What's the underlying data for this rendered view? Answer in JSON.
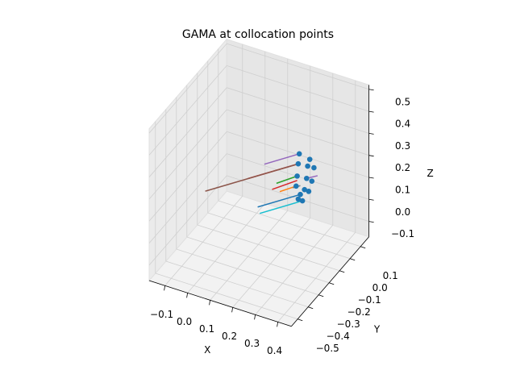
{
  "chart_data": {
    "type": "scatter3d",
    "title": "GAMA at collocation points",
    "xlabel": "X",
    "ylabel": "Y",
    "zlabel": "Z",
    "xlim": [
      -0.17,
      0.46
    ],
    "ylim": [
      -0.56,
      0.18
    ],
    "zlim": [
      -0.17,
      0.52
    ],
    "xticks": [
      {
        "value": -0.1,
        "label": "−0.1"
      },
      {
        "value": 0,
        "label": "0.0"
      },
      0.1,
      0.2,
      0.3,
      0.4
    ],
    "yticks": [
      0.1,
      {
        "value": 0,
        "label": "0.0"
      },
      {
        "value": -0.1,
        "label": "−0.1"
      },
      {
        "value": -0.2,
        "label": "−0.2"
      },
      {
        "value": -0.3,
        "label": "−0.3"
      },
      {
        "value": -0.4,
        "label": "−0.4"
      },
      {
        "value": -0.5,
        "label": "−0.5"
      }
    ],
    "zticks": [
      {
        "value": -0.1,
        "label": "−0.1"
      },
      {
        "value": 0,
        "label": "0.0"
      },
      0.1,
      0.2,
      0.3,
      0.4,
      0.5
    ],
    "grid": true,
    "points": {
      "color": "#1f77b4",
      "x": [
        0.3,
        0.3,
        0.3,
        0.3,
        0.3,
        0.3,
        0.3,
        0.3,
        0.3,
        0.3,
        0.3,
        0.3,
        0.3,
        0.3
      ],
      "y": [
        -0.14,
        -0.04,
        -0.15,
        -0.06,
        0.0,
        -0.16,
        -0.07,
        -0.02,
        -0.17,
        -0.09,
        -0.05,
        -0.13,
        -0.15,
        -0.11
      ],
      "z": [
        0.33,
        0.25,
        0.29,
        0.23,
        0.19,
        0.24,
        0.18,
        0.14,
        0.2,
        0.14,
        0.11,
        0.14,
        0.13,
        0.1
      ]
    },
    "segments": [
      {
        "color": "#9467bd",
        "x": [
          0.3,
          0.21
        ],
        "y": [
          -0.14,
          -0.28
        ],
        "z": [
          0.33,
          0.33
        ]
      },
      {
        "color": "#d62728",
        "x": [
          0.3,
          0.17
        ],
        "y": [
          -0.15,
          -0.35
        ],
        "z": [
          0.29,
          0.29
        ]
      },
      {
        "color": "#8c564b",
        "x": [
          0.3,
          0.06
        ],
        "y": [
          -0.15,
          -0.52
        ],
        "z": [
          0.29,
          0.29
        ]
      },
      {
        "color": "#2ca02c",
        "x": [
          0.3,
          0.25
        ],
        "y": [
          -0.16,
          -0.25
        ],
        "z": [
          0.24,
          0.24
        ]
      },
      {
        "color": "#d62728",
        "x": [
          0.3,
          0.24
        ],
        "y": [
          -0.16,
          -0.27
        ],
        "z": [
          0.22,
          0.22
        ]
      },
      {
        "color": "#9467bd",
        "x": [
          0.3,
          0.33
        ],
        "y": [
          -0.07,
          -0.03
        ],
        "z": [
          0.18,
          0.18
        ]
      },
      {
        "color": "#ff7f0e",
        "x": [
          0.3,
          0.26
        ],
        "y": [
          -0.17,
          -0.24
        ],
        "z": [
          0.2,
          0.2
        ]
      },
      {
        "color": "#7f7f7f",
        "x": [
          0.3,
          0.28
        ],
        "y": [
          -0.13,
          -0.16
        ],
        "z": [
          0.18,
          0.18
        ]
      },
      {
        "color": "#1f77b4",
        "x": [
          0.3,
          0.19
        ],
        "y": [
          -0.13,
          -0.3
        ],
        "z": [
          0.14,
          0.14
        ]
      },
      {
        "color": "#17becf",
        "x": [
          0.3,
          0.19
        ],
        "y": [
          -0.11,
          -0.28
        ],
        "z": [
          0.1,
          0.1
        ]
      }
    ]
  }
}
